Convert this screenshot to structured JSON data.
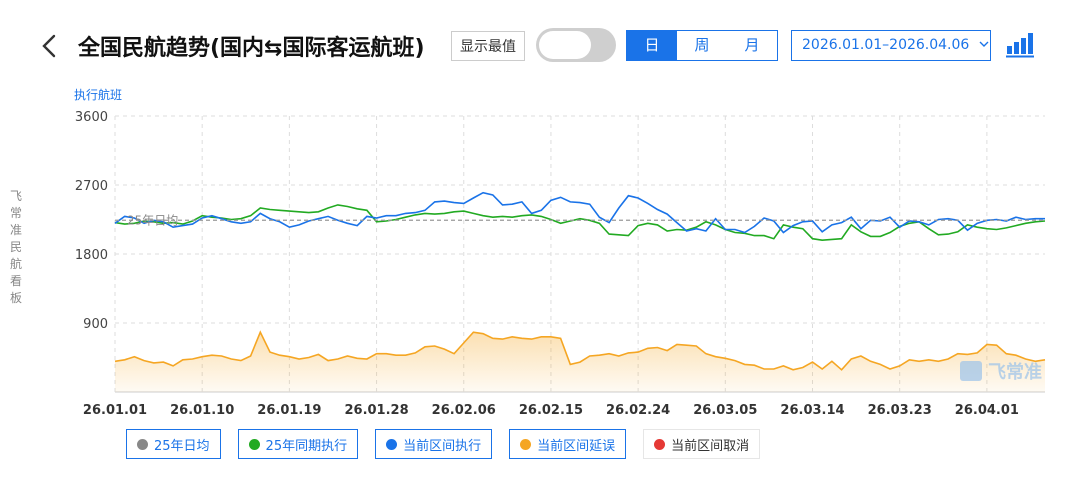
{
  "header": {
    "title": "全国民航趋势(国内⇆国际客运航班)",
    "show_extreme_label": "显示最值",
    "toggle_on": false,
    "tabs": [
      {
        "label": "日",
        "active": true
      },
      {
        "label": "周",
        "active": false
      },
      {
        "label": "月",
        "active": false
      }
    ],
    "date_range": "2026.01.01–2026.04.06",
    "chart_icon": "bar-chart-icon",
    "back_icon": "chevron-left-icon"
  },
  "side_label": "飞常准民航看板",
  "watermark": "飞常准",
  "chart_data": {
    "type": "line",
    "ylabel": "执行航班",
    "ylim": [
      0,
      3600
    ],
    "yticks": [
      900,
      1800,
      2700,
      3600
    ],
    "xticks": [
      "26.01.01",
      "26.01.10",
      "26.01.19",
      "26.01.28",
      "26.02.06",
      "26.02.15",
      "26.02.24",
      "26.03.05",
      "26.03.14",
      "26.03.23",
      "26.04.01"
    ],
    "days": 97,
    "grid": true,
    "reference_line": {
      "name": "25年日均",
      "value": 2240
    },
    "series": [
      {
        "name": "25年同期执行",
        "color": "#22aa22",
        "key": "last_year",
        "values": [
          2210,
          2190,
          2200,
          2230,
          2220,
          2200,
          2210,
          2190,
          2230,
          2300,
          2280,
          2270,
          2250,
          2260,
          2300,
          2400,
          2380,
          2370,
          2360,
          2350,
          2340,
          2350,
          2400,
          2440,
          2420,
          2390,
          2370,
          2220,
          2230,
          2250,
          2280,
          2310,
          2330,
          2320,
          2330,
          2350,
          2360,
          2330,
          2300,
          2280,
          2290,
          2280,
          2300,
          2310,
          2290,
          2250,
          2200,
          2230,
          2260,
          2240,
          2200,
          2060,
          2050,
          2040,
          2170,
          2200,
          2180,
          2100,
          2120,
          2110,
          2150,
          2220,
          2180,
          2120,
          2080,
          2070,
          2040,
          2040,
          2000,
          2180,
          2150,
          2130,
          2000,
          1980,
          1990,
          2000,
          2180,
          2090,
          2030,
          2030,
          2080,
          2160,
          2200,
          2220,
          2130,
          2050,
          2060,
          2090,
          2180,
          2150,
          2130,
          2120,
          2140,
          2170,
          2200,
          2220,
          2230
        ]
      },
      {
        "name": "当前区间执行",
        "color": "#1a73e8",
        "key": "current",
        "values": [
          2200,
          2290,
          2270,
          2200,
          2240,
          2220,
          2150,
          2170,
          2190,
          2270,
          2300,
          2260,
          2220,
          2200,
          2220,
          2330,
          2260,
          2220,
          2150,
          2180,
          2230,
          2260,
          2290,
          2240,
          2200,
          2170,
          2290,
          2270,
          2300,
          2300,
          2330,
          2340,
          2370,
          2480,
          2490,
          2470,
          2460,
          2530,
          2600,
          2570,
          2440,
          2450,
          2480,
          2330,
          2370,
          2500,
          2540,
          2480,
          2470,
          2450,
          2280,
          2210,
          2400,
          2560,
          2530,
          2460,
          2380,
          2320,
          2210,
          2100,
          2130,
          2100,
          2260,
          2120,
          2120,
          2080,
          2160,
          2270,
          2230,
          2080,
          2170,
          2220,
          2230,
          2090,
          2180,
          2210,
          2280,
          2130,
          2240,
          2230,
          2280,
          2150,
          2230,
          2220,
          2180,
          2250,
          2260,
          2240,
          2110,
          2200,
          2240,
          2250,
          2230,
          2280,
          2250,
          2260,
          2260
        ]
      },
      {
        "name": "当前区间延误",
        "color": "#f5a623",
        "key": "delay",
        "fill": true,
        "values": [
          400,
          420,
          460,
          410,
          380,
          390,
          340,
          420,
          430,
          460,
          480,
          470,
          430,
          410,
          470,
          780,
          520,
          480,
          460,
          430,
          450,
          490,
          410,
          430,
          470,
          440,
          430,
          500,
          500,
          480,
          480,
          510,
          590,
          600,
          560,
          500,
          640,
          780,
          760,
          700,
          690,
          720,
          700,
          690,
          720,
          720,
          700,
          360,
          390,
          470,
          480,
          500,
          470,
          510,
          520,
          570,
          580,
          540,
          620,
          610,
          600,
          500,
          460,
          440,
          410,
          360,
          350,
          300,
          300,
          340,
          290,
          320,
          390,
          300,
          400,
          290,
          430,
          470,
          400,
          360,
          300,
          340,
          420,
          400,
          420,
          400,
          430,
          500,
          490,
          510,
          620,
          610,
          500,
          480,
          430,
          400,
          420
        ]
      },
      {
        "name": "当前区间取消",
        "color": "#e53935",
        "key": "cancel",
        "values": []
      }
    ],
    "legend": [
      {
        "label": "25年日均",
        "color": "#888888",
        "active": true
      },
      {
        "label": "25年同期执行",
        "color": "#22aa22",
        "active": true
      },
      {
        "label": "当前区间执行",
        "color": "#1a73e8",
        "active": true
      },
      {
        "label": "当前区间延误",
        "color": "#f5a623",
        "active": true
      },
      {
        "label": "当前区间取消",
        "color": "#e53935",
        "active": false
      }
    ],
    "legend_position": "bottom-left"
  }
}
